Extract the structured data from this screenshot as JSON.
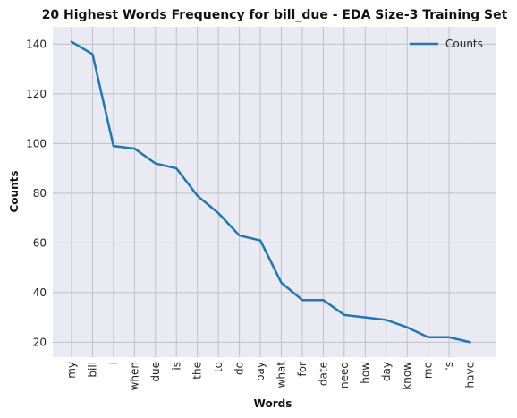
{
  "chart_data": {
    "type": "line",
    "title": "20 Highest Words Frequency for bill_due - EDA Size-3 Training Set",
    "xlabel": "Words",
    "ylabel": "Counts",
    "categories": [
      "my",
      "bill",
      "i",
      "when",
      "due",
      "is",
      "the",
      "to",
      "do",
      "pay",
      "what",
      "for",
      "date",
      "need",
      "how",
      "day",
      "know",
      "me",
      "'s",
      "have"
    ],
    "series": [
      {
        "name": "Counts",
        "values": [
          141,
          136,
          99,
          98,
          92,
          90,
          79,
          72,
          63,
          61,
          44,
          37,
          37,
          31,
          30,
          29,
          26,
          22,
          22,
          20
        ],
        "color": "#1f77b4"
      }
    ],
    "yticks": [
      20,
      40,
      60,
      80,
      100,
      120,
      140
    ],
    "ylim": [
      14,
      147
    ],
    "grid": true,
    "legend_position": "top-right",
    "background": "#eaeaf2",
    "grid_color": "#c0c0c8"
  }
}
